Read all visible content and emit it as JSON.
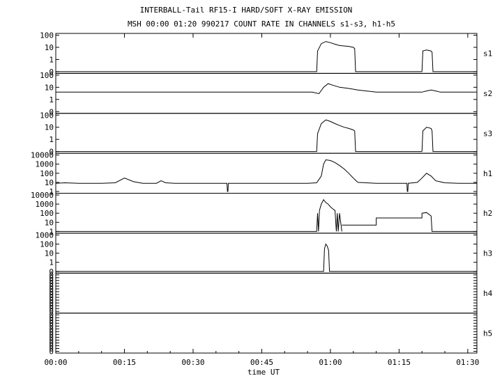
{
  "chart_data": {
    "type": "line",
    "title": "INTERBALL-Tail RF15-I HARD/SOFT X-RAY EMISSION",
    "subtitle": "MSH 00:00 01:20 990217  COUNT RATE IN CHANNELS s1-s3, h1-h5",
    "xlabel": "time UT",
    "x_ticks": [
      "00:00",
      "00:15",
      "00:30",
      "00:45",
      "01:00",
      "01:15",
      "01:30"
    ],
    "x_range_min": [
      0,
      92
    ],
    "y_scale": "log",
    "grid": false,
    "panels": [
      {
        "name": "s1",
        "y_ticks": [
          "100",
          "10",
          "1",
          "0"
        ],
        "segments": [
          {
            "x": [
              0,
              57,
              57.2,
              58,
              59,
              60,
              61,
              62,
              63,
              64,
              65,
              65.3,
              65.5,
              80
            ],
            "y": [
              0,
              0,
              5,
              20,
              30,
              24,
              18,
              14,
              13,
              12,
              10,
              8,
              0,
              0
            ]
          },
          {
            "x": [
              80,
              80.2,
              81,
              82,
              82.2,
              82.4,
              92
            ],
            "y": [
              0,
              5,
              6,
              5,
              4,
              0,
              0
            ]
          }
        ]
      },
      {
        "name": "s2",
        "y_ticks": [
          "100",
          "10",
          "1",
          "0"
        ],
        "segments": [
          {
            "x": [
              0,
              10,
              20,
              30,
              40,
              50,
              56,
              57.5,
              58.5,
              59.5,
              60.5,
              62,
              64,
              66,
              70,
              75,
              80,
              81,
              82,
              83,
              84,
              86,
              90,
              92
            ],
            "y": [
              4,
              4,
              4,
              4,
              4,
              4,
              4,
              3,
              10,
              20,
              15,
              10,
              8,
              6,
              4,
              4,
              4,
              5,
              6,
              5,
              4,
              4,
              4,
              4
            ]
          }
        ]
      },
      {
        "name": "s3",
        "y_ticks": [
          "100",
          "10",
          "1",
          "0"
        ],
        "segments": [
          {
            "x": [
              0,
              57,
              57.2,
              58,
              59,
              60,
              61,
              62,
              63,
              64,
              65,
              65.3,
              65.5,
              80
            ],
            "y": [
              0,
              0,
              3,
              20,
              40,
              30,
              20,
              14,
              10,
              8,
              6,
              5,
              0,
              0
            ]
          },
          {
            "x": [
              80,
              80.2,
              81,
              82,
              82.2,
              82.4,
              92
            ],
            "y": [
              0,
              5,
              10,
              8,
              5,
              0,
              0
            ]
          }
        ]
      },
      {
        "name": "h1",
        "y_ticks": [
          "10000",
          "1000",
          "100",
          "10",
          "1"
        ],
        "segments": [
          {
            "x": [
              0,
              2,
              5,
              10,
              13,
              15,
              17,
              19,
              22,
              23,
              24,
              26,
              30,
              35,
              37.4,
              37.5,
              37.6,
              37.7,
              40,
              45,
              50,
              55,
              57,
              58,
              58.5,
              59,
              60,
              61,
              62,
              63,
              64,
              65,
              66,
              70,
              75,
              76.7,
              76.8,
              76.9,
              77,
              79,
              80,
              81,
              82,
              83,
              85,
              88,
              90,
              92
            ],
            "y": [
              8,
              9,
              8,
              8,
              9,
              30,
              12,
              8,
              8,
              15,
              9,
              8,
              8,
              8,
              8,
              1,
              1,
              8,
              8,
              8,
              8,
              8,
              9,
              50,
              1000,
              3000,
              2500,
              1500,
              700,
              300,
              100,
              30,
              10,
              8,
              8,
              8,
              1,
              1,
              8,
              10,
              30,
              100,
              50,
              15,
              9,
              8,
              8,
              8
            ]
          }
        ]
      },
      {
        "name": "h2",
        "y_ticks": [
          "10000",
          "1000",
          "100",
          "10",
          "1"
        ],
        "segments": [
          {
            "x": [
              0,
              57,
              57.2,
              57.4,
              57.6,
              58,
              58.5,
              59,
              59.5,
              60,
              60.5,
              61,
              61.3,
              61.5,
              61.7,
              62,
              62.5
            ],
            "y": [
              0,
              0,
              100,
              0,
              200,
              1000,
              3000,
              1500,
              1000,
              500,
              300,
              200,
              0,
              100,
              0,
              100,
              0
            ]
          },
          {
            "x": [
              62.5,
              70,
              70,
              80,
              80,
              81,
              82,
              82.2,
              92
            ],
            "y": [
              5,
              5,
              30,
              30,
              100,
              120,
              50,
              0,
              0
            ]
          }
        ]
      },
      {
        "name": "h3",
        "y_ticks": [
          "1000",
          "100",
          "10",
          "1",
          "0"
        ],
        "segments": [
          {
            "x": [
              0,
              58.5,
              58.7,
              59,
              59.3,
              59.6,
              59.8,
              92
            ],
            "y": [
              0,
              0,
              30,
              100,
              60,
              20,
              0,
              0
            ]
          }
        ]
      },
      {
        "name": "h4",
        "y_ticks": [
          "0",
          "0",
          "0",
          "0",
          "0",
          "0",
          "0",
          "0",
          "0",
          "0",
          "0",
          "0",
          "0",
          "0"
        ],
        "segments": []
      },
      {
        "name": "h5",
        "y_ticks": [
          "0",
          "0",
          "0",
          "0",
          "0",
          "0",
          "0",
          "0",
          "0",
          "0",
          "0",
          "0",
          "0",
          "0"
        ],
        "segments": []
      }
    ]
  }
}
